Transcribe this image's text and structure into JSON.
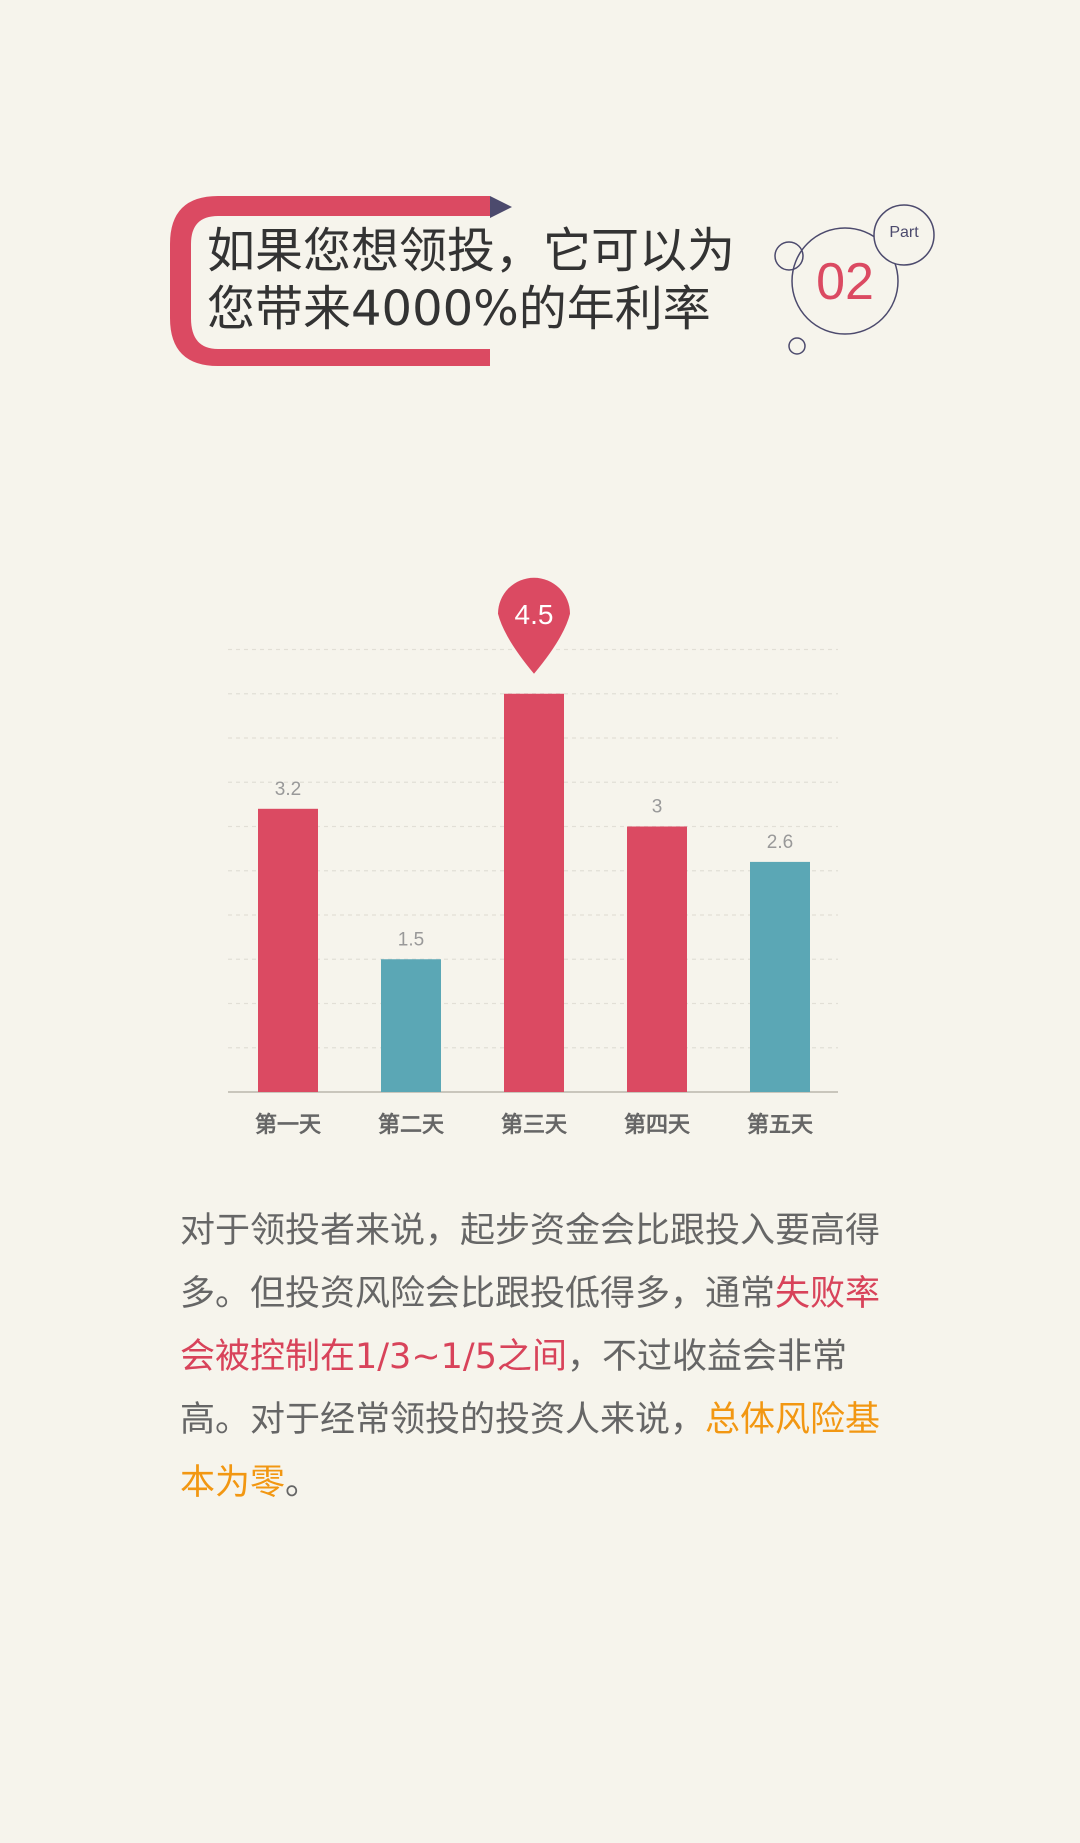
{
  "header": {
    "title_line1": "如果您想领投，它可以为",
    "title_line2": "您带来4000%的年利率",
    "part_label": "Part",
    "part_number": "02"
  },
  "colors": {
    "accent_red": "#db4a62",
    "teal": "#5ba7b5",
    "circle_stroke": "#4c4a6d",
    "highlight_orange": "#f29712"
  },
  "chart_data": {
    "type": "bar",
    "categories": [
      "第一天",
      "第二天",
      "第三天",
      "第四天",
      "第五天"
    ],
    "values": [
      3.2,
      1.5,
      4.5,
      3,
      2.6
    ],
    "value_labels": [
      "3.2",
      "1.5",
      "4.5",
      "3",
      "2.6"
    ],
    "bar_colors": [
      "#db4a62",
      "#5ba7b5",
      "#db4a62",
      "#db4a62",
      "#5ba7b5"
    ],
    "highlighted_index": 2,
    "title": "",
    "xlabel": "",
    "ylabel": "",
    "ylim": [
      0,
      5
    ],
    "grid": true,
    "legend": "none"
  },
  "paragraph": {
    "part1": "对于领投者来说，起步资金会比跟投入要高得多。但投资风险会比跟投低得多，通常",
    "highlight1": "失败率会被控制在1/3~1/5之间",
    "part2": "，不过收益会非常高。对于经常领投的投资人来说，",
    "highlight2": "总体风险基本为零",
    "part3": "。"
  }
}
